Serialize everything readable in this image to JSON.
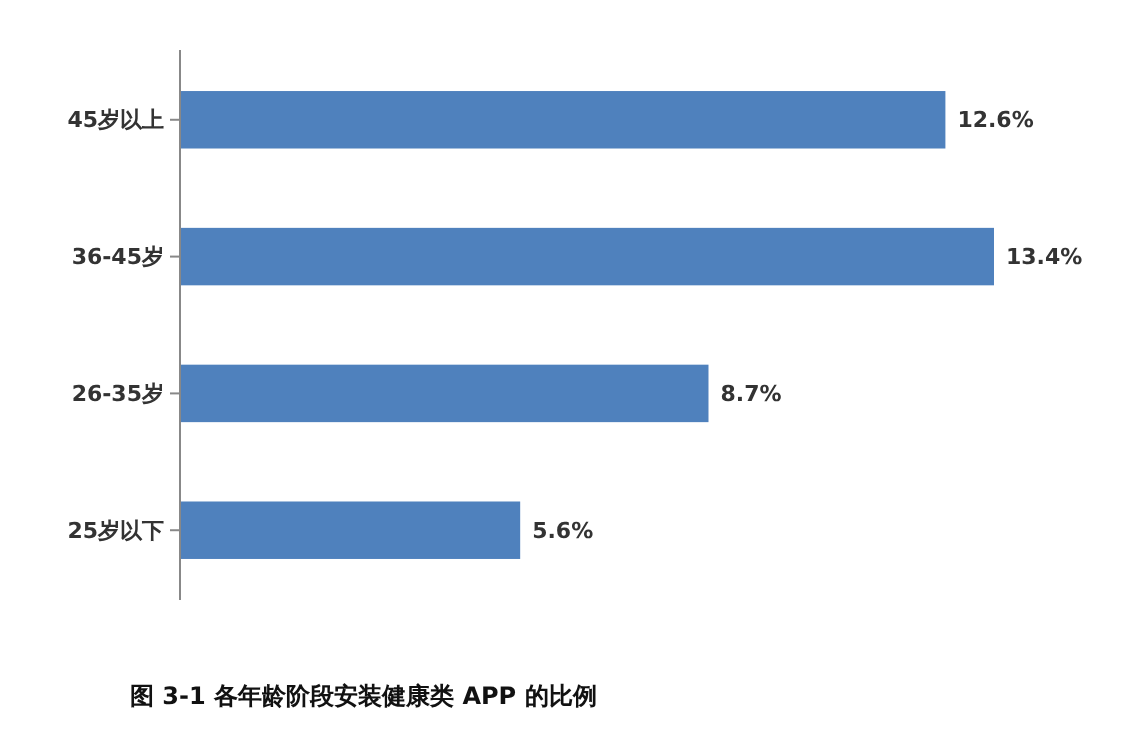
{
  "chart_data": {
    "type": "bar",
    "orientation": "horizontal",
    "title": "图 3-1 各年龄阶段安装健康类 APP 的比例",
    "categories": [
      "45岁以上",
      "36-45岁",
      "26-35岁",
      "25岁以下"
    ],
    "values": [
      12.6,
      13.4,
      8.7,
      5.6
    ],
    "value_labels": [
      "12.6%",
      "13.4%",
      "8.7%",
      "5.6%"
    ],
    "color": "#4f81bd"
  }
}
